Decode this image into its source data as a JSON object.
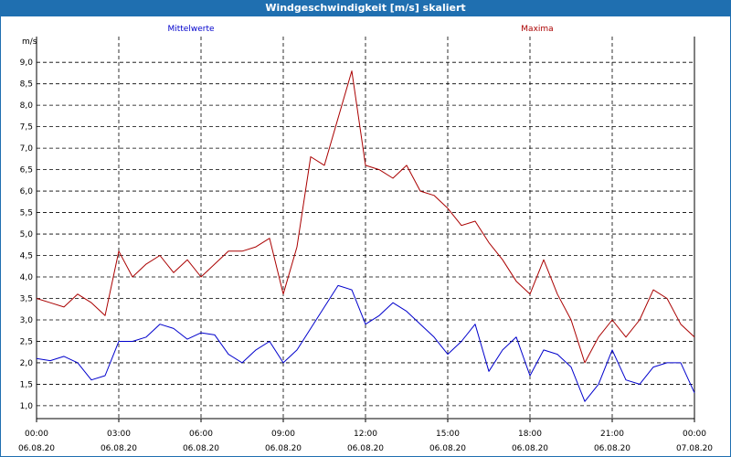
{
  "window": {
    "title": "Windgeschwindigkeit [m/s] skaliert"
  },
  "colors": {
    "title_bar": "#1f6fb0",
    "mean": "#0000cc",
    "max": "#aa0000",
    "grid": "#000000"
  },
  "chart_data": {
    "type": "line",
    "title": "Windgeschwindigkeit [m/s] skaliert",
    "ylabel": "m/s",
    "xlabel": "",
    "ylim": [
      0.7,
      9.6
    ],
    "yticks": [
      "1,0",
      "1,5",
      "2,0",
      "2,5",
      "3,0",
      "3,5",
      "4,0",
      "4,5",
      "5,0",
      "5,5",
      "6,0",
      "6,5",
      "7,0",
      "7,5",
      "8,0",
      "8,5",
      "9,0"
    ],
    "xticks": [
      {
        "time": "00:00",
        "date": "06.08.20"
      },
      {
        "time": "03:00",
        "date": "06.08.20"
      },
      {
        "time": "06:00",
        "date": "06.08.20"
      },
      {
        "time": "09:00",
        "date": "06.08.20"
      },
      {
        "time": "12:00",
        "date": "06.08.20"
      },
      {
        "time": "15:00",
        "date": "06.08.20"
      },
      {
        "time": "18:00",
        "date": "06.08.20"
      },
      {
        "time": "21:00",
        "date": "06.08.20"
      },
      {
        "time": "00:00",
        "date": "07.08.20"
      }
    ],
    "grid": true,
    "x_hours": [
      0,
      0.5,
      1,
      1.5,
      2,
      2.5,
      3,
      3.5,
      4,
      4.5,
      5,
      5.5,
      6,
      6.5,
      7,
      7.5,
      8,
      8.5,
      9,
      9.5,
      10,
      10.5,
      11,
      11.5,
      12,
      12.5,
      13,
      13.5,
      14,
      14.5,
      15,
      15.5,
      16,
      16.5,
      17,
      17.5,
      18,
      18.5,
      19,
      19.5,
      20,
      20.5,
      21,
      21.5,
      22,
      22.5,
      23,
      23.5,
      24
    ],
    "series": [
      {
        "name": "Mittelwerte",
        "color": "#0000cc",
        "values": [
          2.1,
          2.05,
          2.15,
          2.0,
          1.6,
          1.7,
          2.5,
          2.5,
          2.6,
          2.9,
          2.8,
          2.55,
          2.7,
          2.65,
          2.2,
          2.0,
          2.3,
          2.5,
          2.0,
          2.3,
          2.8,
          3.3,
          3.8,
          3.7,
          2.9,
          3.1,
          3.4,
          3.2,
          2.9,
          2.6,
          2.2,
          2.5,
          2.9,
          1.8,
          2.3,
          2.6,
          1.7,
          2.3,
          2.2,
          1.9,
          1.1,
          1.5,
          2.3,
          1.6,
          1.5,
          1.9,
          2.0,
          2.0,
          1.3
        ]
      },
      {
        "name": "Maxima",
        "color": "#aa0000",
        "values": [
          3.5,
          3.4,
          3.3,
          3.6,
          3.4,
          3.1,
          4.6,
          4.0,
          4.3,
          4.5,
          4.1,
          4.4,
          4.0,
          4.3,
          4.6,
          4.6,
          4.7,
          4.9,
          3.6,
          4.7,
          6.8,
          6.6,
          7.7,
          8.8,
          6.6,
          6.5,
          6.3,
          6.6,
          6.0,
          5.9,
          5.6,
          5.2,
          5.3,
          4.8,
          4.4,
          3.9,
          3.6,
          4.4,
          3.6,
          3.0,
          2.0,
          2.6,
          3.0,
          2.6,
          3.0,
          3.7,
          3.5,
          2.9,
          2.6
        ]
      }
    ]
  }
}
